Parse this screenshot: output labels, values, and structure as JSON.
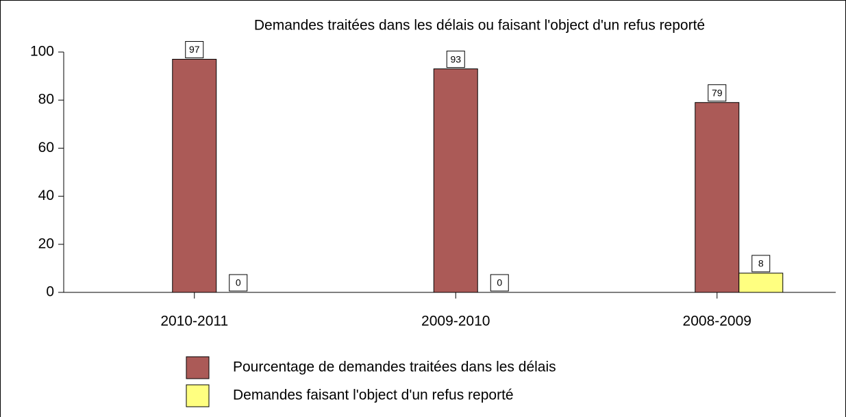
{
  "chart_data": {
    "type": "bar",
    "title": "Demandes traitées dans les délais ou faisant l'object d'un refus reporté",
    "categories": [
      "2010-2011",
      "2009-2010",
      "2008-2009"
    ],
    "series": [
      {
        "name": "Pourcentage de demandes traitées dans les délais",
        "color": "#ab5a57",
        "values": [
          97,
          93,
          79
        ]
      },
      {
        "name": "Demandes faisant l'object d'un refus reporté",
        "color": "#ffff80",
        "values": [
          0,
          0,
          8
        ]
      }
    ],
    "ylim": [
      0,
      100
    ],
    "yticks": [
      0,
      20,
      40,
      60,
      80,
      100
    ]
  }
}
